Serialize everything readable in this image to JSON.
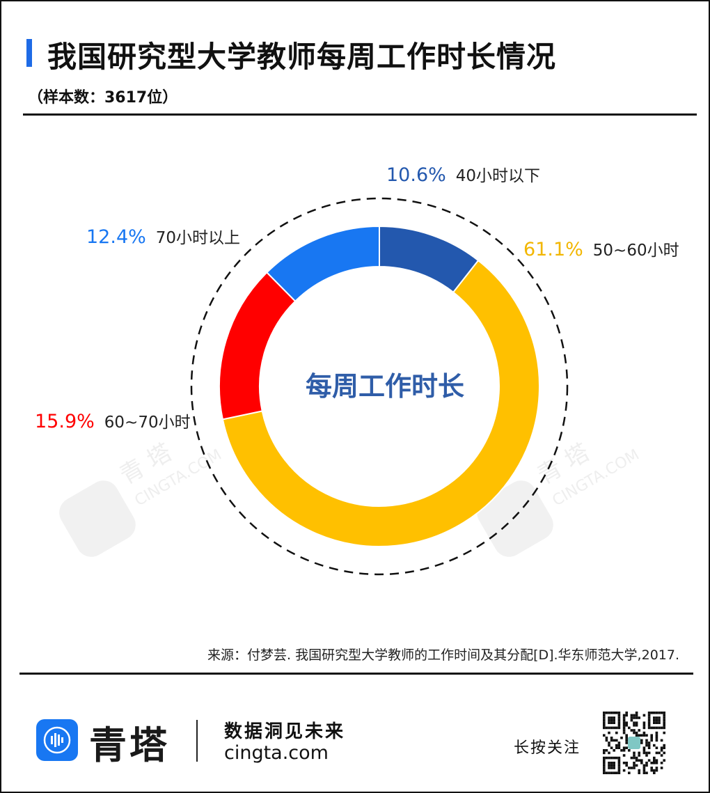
{
  "header": {
    "title": "我国研究型大学教师每周工作时长情况",
    "subtitle": "（样本数：3617位）"
  },
  "colors": {
    "accent": "#1E6BE6",
    "series": [
      "#2358AE",
      "#FFC000",
      "#FF0000",
      "#1877F2"
    ]
  },
  "chart_data": {
    "type": "pie",
    "variant": "donut",
    "center_label": "每周工作时长",
    "slices": [
      {
        "value_label": "10.6%",
        "category": "40小时以下",
        "value": 10.6,
        "color": "#2358AE"
      },
      {
        "value_label": "61.1%",
        "category": "50~60小时",
        "value": 61.1,
        "color": "#FFC000"
      },
      {
        "value_label": "15.9%",
        "category": "60~70小时",
        "value": 15.9,
        "color": "#FF0000"
      },
      {
        "value_label": "12.4%",
        "category": "70小时以上",
        "value": 12.4,
        "color": "#1877F2"
      }
    ]
  },
  "watermark": {
    "brand": "青 塔",
    "site": "CINGTA.COM"
  },
  "source": "来源：付梦芸. 我国研究型大学教师的工作时间及其分配[D].华东师范大学,2017.",
  "footer": {
    "brand_name": "青塔",
    "slogan": "数据洞见未来",
    "website": "cingta.com",
    "follow_label": "长按关注"
  }
}
